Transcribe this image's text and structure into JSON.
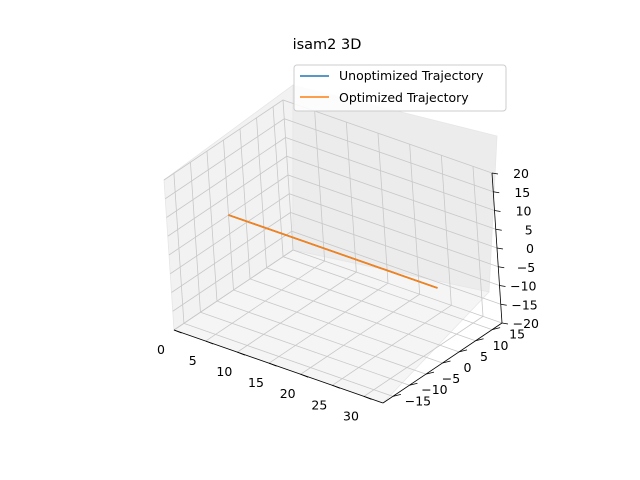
{
  "chart_data": {
    "type": "line",
    "title": "isam2 3D",
    "xlabel": "",
    "ylabel": "",
    "zlabel": "",
    "xlim": [
      0,
      33
    ],
    "ylim": [
      -18,
      18
    ],
    "zlim": [
      -20,
      20
    ],
    "x_ticks": [
      "0",
      "5",
      "10",
      "15",
      "20",
      "25",
      "30"
    ],
    "y_ticks": [
      "−15",
      "−10",
      "−5",
      "0",
      "5",
      "10",
      "15"
    ],
    "z_ticks": [
      "−20",
      "−15",
      "−10",
      "−5",
      "0",
      "5",
      "10",
      "15",
      "20"
    ],
    "grid": true,
    "legend_position": "upper right",
    "series": [
      {
        "name": "Unoptimized Trajectory",
        "color": "#1f77b4",
        "x": [
          0,
          33
        ],
        "y": [
          0,
          0
        ],
        "z": [
          0,
          0
        ]
      },
      {
        "name": "Optimized Trajectory",
        "color": "#ff7f0e",
        "x": [
          0,
          33
        ],
        "y": [
          0,
          0
        ],
        "z": [
          0,
          0
        ]
      }
    ]
  }
}
